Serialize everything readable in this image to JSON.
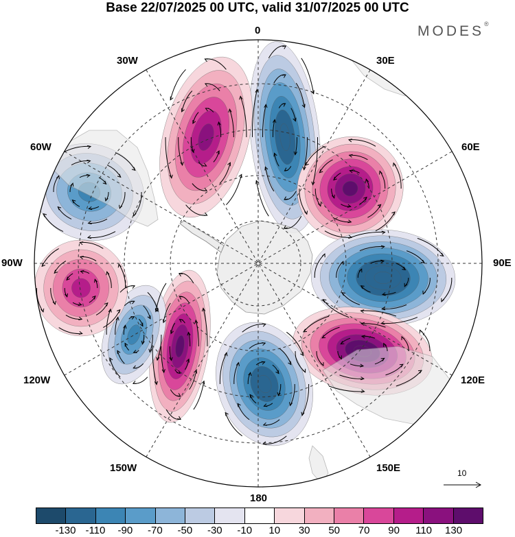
{
  "title": "Base 22/07/2025 00 UTC, valid 31/07/2025 00 UTC",
  "brand": "MODES",
  "brand_mark": "®",
  "longitude_labels": {
    "lon_0": "0",
    "lon_30e": "30E",
    "lon_60e": "60E",
    "lon_90e": "90E",
    "lon_120e": "120E",
    "lon_150e": "150E",
    "lon_180": "180",
    "lon_150w": "150W",
    "lon_120w": "120W",
    "lon_90w": "90W",
    "lon_60w": "60W",
    "lon_30w": "30W"
  },
  "reference_vector": {
    "label": "10"
  },
  "colorbar": {
    "colors": [
      "#1d4a6b",
      "#2a6691",
      "#3c85b4",
      "#5a9cc9",
      "#8db5d9",
      "#bccbe3",
      "#e4e4f0",
      "#ffffff",
      "#f7d7dd",
      "#f2b0c0",
      "#ea80a8",
      "#d9479a",
      "#b51d8a",
      "#8a117e",
      "#5e0d6c"
    ],
    "tick_labels": [
      "-130",
      "-110",
      "-90",
      "-70",
      "-50",
      "-30",
      "-10",
      "10",
      "30",
      "50",
      "70",
      "90",
      "110",
      "130"
    ]
  },
  "anomaly_centers": [
    {
      "sign": "negative",
      "level": -110,
      "region": "0 meridian, 60S"
    },
    {
      "sign": "positive",
      "level": 110,
      "region": "45E"
    },
    {
      "sign": "negative",
      "level": -130,
      "region": "90E"
    },
    {
      "sign": "positive",
      "level": 130,
      "region": "120E"
    },
    {
      "sign": "negative",
      "level": -110,
      "region": "180"
    },
    {
      "sign": "positive",
      "level": 110,
      "region": "150W"
    },
    {
      "sign": "negative",
      "level": -70,
      "region": "120W"
    },
    {
      "sign": "positive",
      "level": 70,
      "region": "90W"
    },
    {
      "sign": "negative",
      "level": -70,
      "region": "60W"
    },
    {
      "sign": "positive",
      "level": 90,
      "region": "30W"
    }
  ]
}
